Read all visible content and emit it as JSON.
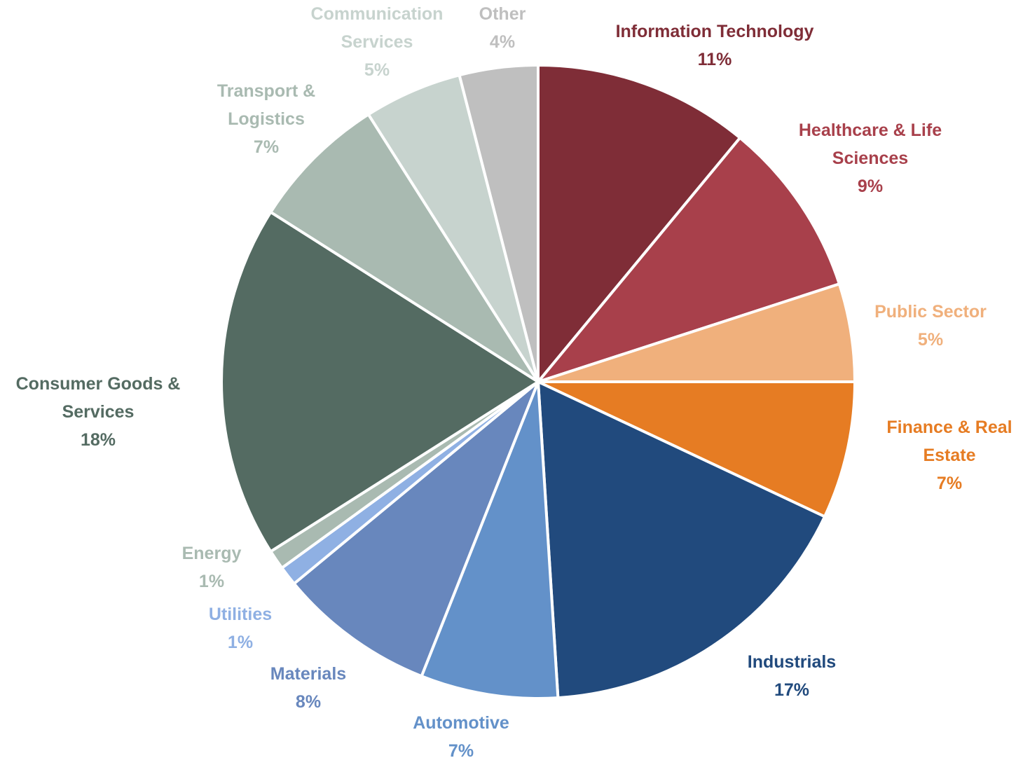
{
  "chart_data": {
    "type": "pie",
    "categories": [
      "Information Technology",
      "Healthcare & Life Sciences",
      "Public Sector",
      "Finance & Real Estate",
      "Industrials",
      "Automotive",
      "Materials",
      "Utilities",
      "Energy",
      "Consumer Goods & Services",
      "Transport & Logistics",
      "Communication Services",
      "Other"
    ],
    "values": [
      11,
      9,
      5,
      7,
      17,
      7,
      8,
      1,
      1,
      18,
      7,
      5,
      4
    ],
    "value_labels": [
      "11%",
      "9%",
      "5%",
      "7%",
      "17%",
      "7%",
      "8%",
      "1%",
      "1%",
      "18%",
      "7%",
      "5%",
      "4%"
    ],
    "colors": [
      "#7f2d37",
      "#a8404b",
      "#f0b07c",
      "#e67c23",
      "#214a7d",
      "#6391c9",
      "#6887bd",
      "#8fb0e3",
      "#a9bab1",
      "#546b62",
      "#a9bab1",
      "#c7d3ce",
      "#bfbfbf"
    ]
  }
}
